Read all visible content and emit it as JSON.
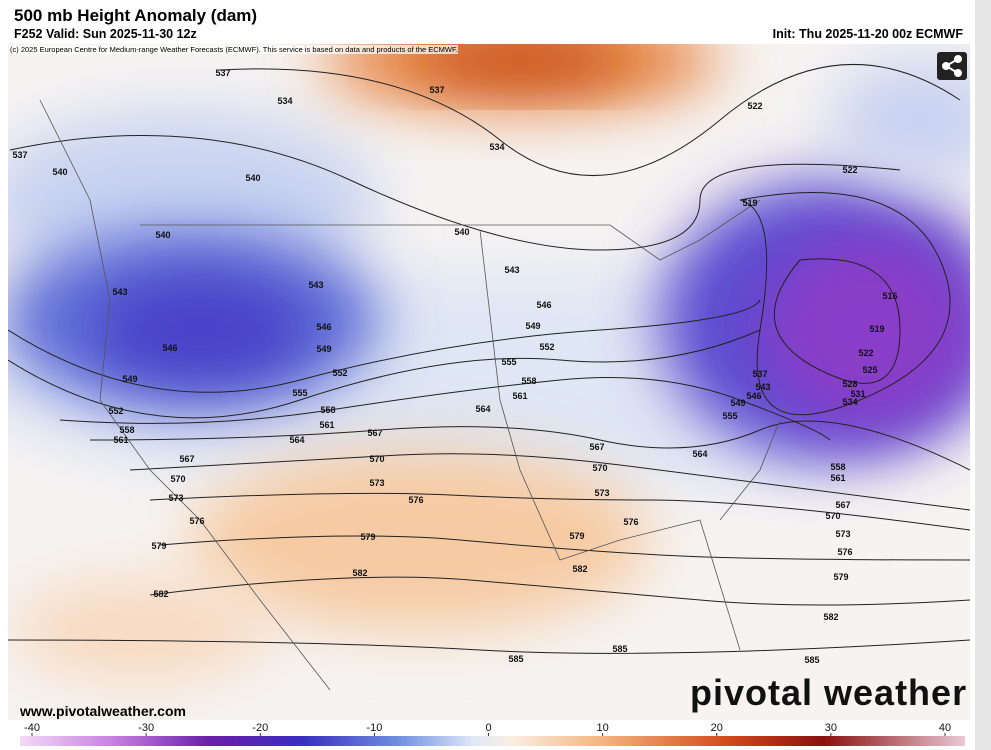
{
  "header": {
    "title": "500 mb Height Anomaly (dam)",
    "valid": "F252 Valid: Sun 2025-11-30 12z",
    "init": "Init: Thu 2025-11-20 00z ECMWF",
    "credit": "(c) 2025 European Centre for Medium-range Weather Forecasts (ECMWF). This service is based on data and products of the ECMWF."
  },
  "map": {
    "contour_labels": [
      537,
      537,
      534,
      534,
      522,
      522,
      540,
      537,
      540,
      519,
      540,
      540,
      543,
      543,
      543,
      546,
      546,
      546,
      549,
      549,
      549,
      552,
      552,
      552,
      555,
      555,
      558,
      558,
      558,
      561,
      561,
      561,
      564,
      564,
      567,
      567,
      570,
      570,
      573,
      573,
      576,
      576,
      579,
      579,
      582,
      582,
      585,
      585,
      516,
      519,
      522,
      525,
      528,
      531,
      534,
      537,
      543,
      546,
      549,
      555,
      558,
      561,
      564,
      567,
      567,
      570,
      570,
      573,
      573,
      576,
      576,
      579,
      579,
      582,
      582,
      585
    ]
  },
  "footer": {
    "website": "www.pivotalweather.com",
    "watermark": "pivotal weather"
  },
  "colorbar": {
    "lim": [
      -40,
      40
    ],
    "ticks": [
      -40,
      -30,
      -20,
      -10,
      0,
      10,
      20,
      30,
      40
    ]
  }
}
